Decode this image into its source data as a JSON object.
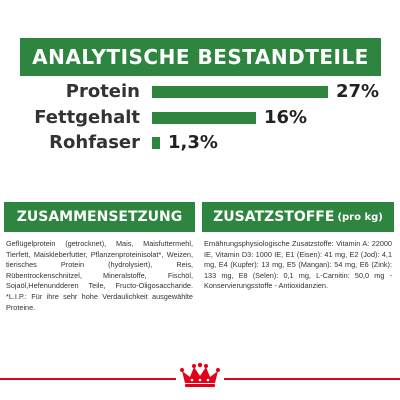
{
  "banner": {
    "title": "ANALYTISCHE BESTANDTEILE"
  },
  "analysis": [
    {
      "label": "Protein",
      "value": "27%",
      "percent": 27
    },
    {
      "label": "Fettgehalt",
      "value": "16%",
      "percent": 16
    },
    {
      "label": "Rohfaser",
      "value": "1,3%",
      "percent": 1.3
    }
  ],
  "composition": {
    "title": "ZUSAMMENSETZUNG",
    "text": "Geflügelprotein (getrocknet), Mais, Maisfuttermehl, Tierfett, Maiskleberfutter, Pflanzenproteinisolat*, Weizen, tierisches Protein (hydrolysiert), Reis, Rübentrockenschnitzel, Mineralstoffe, Fischöl, Sojaöl,Hefenundderen Teile, Fructo-Oligosaccharide. *L.I.P.: Für ihre sehr hohe Verdaulichkeit ausgewählte Proteine."
  },
  "additives": {
    "title": "ZUSATZSTOFFE",
    "suffix": "(pro kg)",
    "text": "Ernährungsphysiologische Zusatzstoffe: Vitamin A: 22000 IE, Vitamin D3: 1000 IE, E1 (Eisen): 41 mg, E2 (Jod): 4,1 mg, E4 (Kupfer): 13 mg, E5 (Mangan): 54 mg, E6 (Zink): 133 mg, E8 (Selen): 0,1 mg, L-Carnitin: 50,0 mg - Konservierungsstoffe - Antioxidanzien."
  },
  "colors": {
    "accent": "#2e8540",
    "line": "#e2001a",
    "logo": "#e2001a"
  },
  "logo": {
    "icon": "royal-canin-crown-logo"
  }
}
